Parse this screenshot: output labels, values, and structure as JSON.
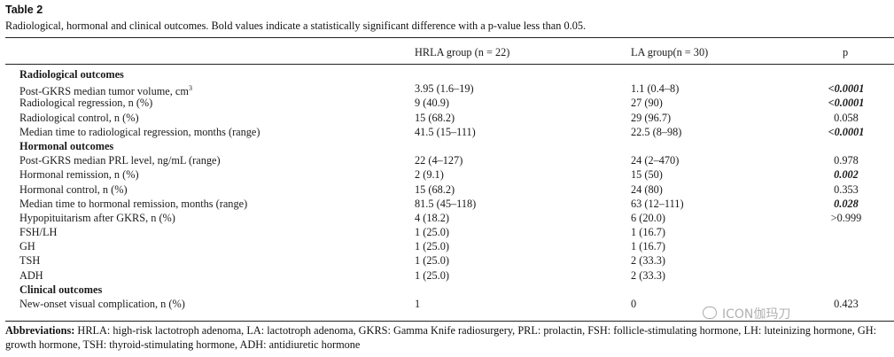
{
  "table": {
    "label": "Table 2",
    "caption": "Radiological, hormonal and clinical outcomes. Bold values indicate a statistically significant difference with a p-value less than 0.05.",
    "columns": {
      "group1": "HRLA group (n = 22)",
      "group2": "LA group(n = 30)",
      "p": "p"
    },
    "rows": [
      {
        "label": "Radiological outcomes",
        "section": true
      },
      {
        "label": "Post-GKRS median tumor volume, cm",
        "sup": "3",
        "g1": "3.95 (1.6–19)",
        "g2": "1.1 (0.4–8)",
        "p": "<0.0001",
        "sig": true
      },
      {
        "label": "Radiological regression, n (%)",
        "g1": "9 (40.9)",
        "g2": "27 (90)",
        "p": "<0.0001",
        "sig": true
      },
      {
        "label": "Radiological control, n (%)",
        "g1": "15 (68.2)",
        "g2": "29 (96.7)",
        "p": "0.058",
        "sig": false
      },
      {
        "label": "Median time to radiological regression, months (range)",
        "g1": "41.5 (15–111)",
        "g2": "22.5 (8–98)",
        "p": "<0.0001",
        "sig": true
      },
      {
        "label": "Hormonal outcomes",
        "section": true
      },
      {
        "label": "Post-GKRS median PRL level, ng/mL (range)",
        "g1": "22 (4–127)",
        "g2": "24 (2–470)",
        "p": "0.978",
        "sig": false
      },
      {
        "label": "Hormonal remission, n (%)",
        "g1": "2 (9.1)",
        "g2": "15 (50)",
        "p": "0.002",
        "sig": true
      },
      {
        "label": "Hormonal control, n (%)",
        "g1": "15 (68.2)",
        "g2": "24 (80)",
        "p": "0.353",
        "sig": false
      },
      {
        "label": "Median time to hormonal remission, months (range)",
        "g1": "81.5 (45–118)",
        "g2": "63 (12–111)",
        "p": "0.028",
        "sig": true
      },
      {
        "label": "Hypopituitarism after GKRS, n (%)",
        "g1": "4 (18.2)",
        "g2": "6 (20.0)",
        "p": ">0.999",
        "sig": false
      },
      {
        "label": "FSH/LH",
        "g1": "1 (25.0)",
        "g2": "1 (16.7)",
        "p": "",
        "sig": false
      },
      {
        "label": "GH",
        "g1": "1 (25.0)",
        "g2": "1 (16.7)",
        "p": "",
        "sig": false
      },
      {
        "label": "TSH",
        "g1": "1 (25.0)",
        "g2": "2 (33.3)",
        "p": "",
        "sig": false
      },
      {
        "label": "ADH",
        "g1": "1 (25.0)",
        "g2": "2 (33.3)",
        "p": "",
        "sig": false
      },
      {
        "label": "Clinical outcomes",
        "section": true
      },
      {
        "label": "New-onset visual complication, n (%)",
        "g1": "1",
        "g2": "0",
        "p": "0.423",
        "sig": false
      }
    ],
    "abbreviations_label": "Abbreviations:",
    "abbreviations_text": " HRLA: high-risk lactotroph adenoma, LA: lactotroph adenoma, GKRS: Gamma Knife radiosurgery, PRL: prolactin, FSH: follicle-stimulating hormone, LH: luteinizing hormone, GH: growth hormone, TSH: thyroid-stimulating hormone, ADH: antidiuretic hormone"
  },
  "watermark": {
    "text": "ICON伽玛刀",
    "icon": "chat-bubble-icon"
  }
}
